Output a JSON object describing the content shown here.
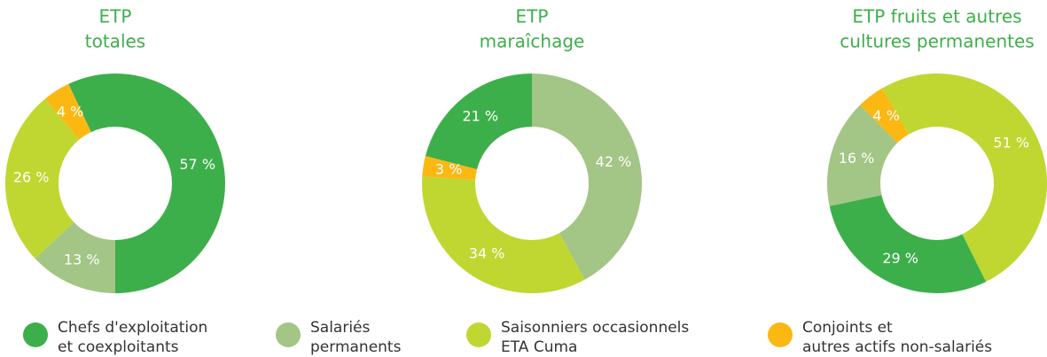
{
  "chart_data": [
    {
      "type": "pie",
      "title": [
        "ETP",
        "totales"
      ],
      "values": [
        57,
        13,
        26,
        4
      ],
      "value_labels": [
        "57 %",
        "13 %",
        "26 %",
        "4 %"
      ]
    },
    {
      "type": "pie",
      "title": [
        "ETP",
        "maraîchage"
      ],
      "values": [
        21,
        42,
        34,
        3
      ],
      "value_labels": [
        "21 %",
        "42 %",
        "34 %",
        "3 %"
      ]
    },
    {
      "type": "pie",
      "title": [
        "ETP fruits et autres",
        "cultures permanentes"
      ],
      "values": [
        29,
        16,
        51,
        4
      ],
      "value_labels": [
        "29 %",
        "16 %",
        "51 %",
        "4 %"
      ]
    }
  ],
  "legend": [
    {
      "name": [
        "Chefs d'exploitation",
        "et coexploitants"
      ],
      "color": "#3daf4a"
    },
    {
      "name": [
        "Salariés",
        "permanents"
      ],
      "color": "#a3c585"
    },
    {
      "name": [
        "Saisonniers occasionnels",
        "ETA Cuma"
      ],
      "color": "#bfd730"
    },
    {
      "name": [
        "Conjoints et",
        "autres actifs non-salariés"
      ],
      "color": "#fbb813"
    }
  ]
}
